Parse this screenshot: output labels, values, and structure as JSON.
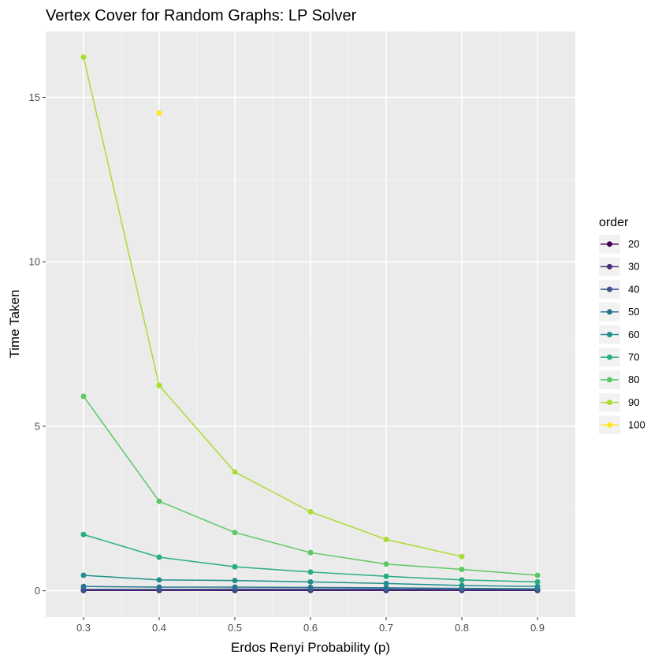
{
  "chart_data": {
    "type": "line",
    "title": "Vertex Cover for Random Graphs: LP Solver",
    "xlabel": "Erdos Renyi Probability (p)",
    "ylabel": "Time Taken",
    "x": [
      0.3,
      0.4,
      0.5,
      0.6,
      0.7,
      0.8,
      0.9
    ],
    "xlim": [
      0.25,
      0.95
    ],
    "ylim": [
      -0.8,
      17.0
    ],
    "x_ticks": [
      "0.3",
      "0.4",
      "0.5",
      "0.6",
      "0.7",
      "0.8",
      "0.9"
    ],
    "y_ticks": [
      "0",
      "5",
      "10",
      "15"
    ],
    "y_tick_values": [
      0,
      5,
      10,
      15
    ],
    "grid": true,
    "legend_title": "order",
    "legend_position": "right",
    "series": [
      {
        "name": "20",
        "color": "#440154",
        "values": [
          0.01,
          0.01,
          0.01,
          0.01,
          0.01,
          0.01,
          0.01
        ]
      },
      {
        "name": "30",
        "color": "#472D7B",
        "values": [
          0.02,
          0.02,
          0.02,
          0.02,
          0.02,
          0.02,
          0.02
        ]
      },
      {
        "name": "40",
        "color": "#3B528B",
        "values": [
          0.04,
          0.04,
          0.05,
          0.05,
          0.05,
          0.04,
          0.04
        ]
      },
      {
        "name": "50",
        "color": "#2C728E",
        "values": [
          0.13,
          0.11,
          0.11,
          0.1,
          0.09,
          0.07,
          0.06
        ]
      },
      {
        "name": "60",
        "color": "#21908C",
        "values": [
          0.47,
          0.33,
          0.31,
          0.27,
          0.22,
          0.16,
          0.13
        ]
      },
      {
        "name": "70",
        "color": "#27AD81",
        "values": [
          1.71,
          1.02,
          0.73,
          0.57,
          0.44,
          0.33,
          0.27
        ]
      },
      {
        "name": "80",
        "color": "#5DC863",
        "values": [
          5.91,
          2.72,
          1.77,
          1.16,
          0.81,
          0.65,
          0.47
        ]
      },
      {
        "name": "90",
        "color": "#AADC32",
        "values": [
          16.22,
          6.24,
          3.61,
          2.4,
          1.56,
          1.04,
          null
        ]
      },
      {
        "name": "100",
        "color": "#FDE725",
        "values": [
          null,
          14.52,
          null,
          null,
          null,
          null,
          null
        ]
      }
    ]
  }
}
